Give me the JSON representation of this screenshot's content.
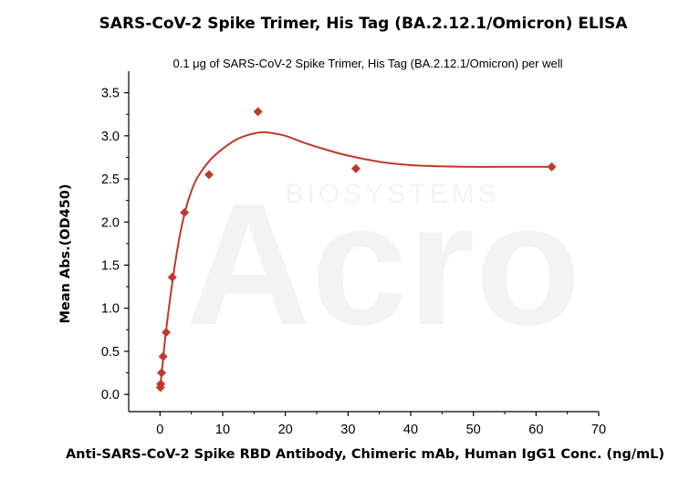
{
  "chart_data": {
    "type": "scatter",
    "title": "SARS-CoV-2 Spike Trimer, His Tag (BA.2.12.1/Omicron) ELISA",
    "subtitle": "0.1 μg of SARS-CoV-2 Spike Trimer, His Tag (BA.2.12.1/Omicron) per well",
    "xlabel": "Anti-SARS-CoV-2 Spike RBD Antibody, Chimeric mAb, Human IgG1 Conc. (ng/mL)",
    "ylabel": "Mean Abs.(OD450)",
    "xlim": [
      -5,
      70
    ],
    "ylim": [
      -0.2,
      3.75
    ],
    "x_ticks": [
      0,
      10,
      20,
      30,
      40,
      50,
      60,
      70
    ],
    "y_ticks": [
      0.0,
      0.5,
      1.0,
      1.5,
      2.0,
      2.5,
      3.0,
      3.5
    ],
    "grid": false,
    "legend": "none",
    "marker": "diamond",
    "color": "#c0392b",
    "watermark": [
      "BIOSYSTEMS",
      "Acro"
    ],
    "series": [
      {
        "x": [
          0.061,
          0.122,
          0.244,
          0.488,
          0.977,
          1.953,
          3.906,
          7.8125,
          15.625,
          31.25,
          62.5
        ],
        "y": [
          0.08,
          0.12,
          0.25,
          0.44,
          0.72,
          1.36,
          2.11,
          2.55,
          3.28,
          2.62,
          2.64
        ]
      }
    ],
    "fit_curve": {
      "x": [
        0,
        0.5,
        1,
        2,
        3,
        4,
        5,
        6,
        8,
        10,
        12,
        14,
        16,
        17,
        18,
        20,
        23,
        26,
        30,
        35,
        40,
        45,
        50,
        55,
        62.5
      ],
      "y": [
        0.06,
        0.42,
        0.76,
        1.32,
        1.78,
        2.12,
        2.36,
        2.52,
        2.72,
        2.85,
        2.95,
        3.01,
        3.04,
        3.04,
        3.03,
        3.0,
        2.92,
        2.85,
        2.77,
        2.7,
        2.66,
        2.645,
        2.64,
        2.64,
        2.64
      ]
    }
  }
}
